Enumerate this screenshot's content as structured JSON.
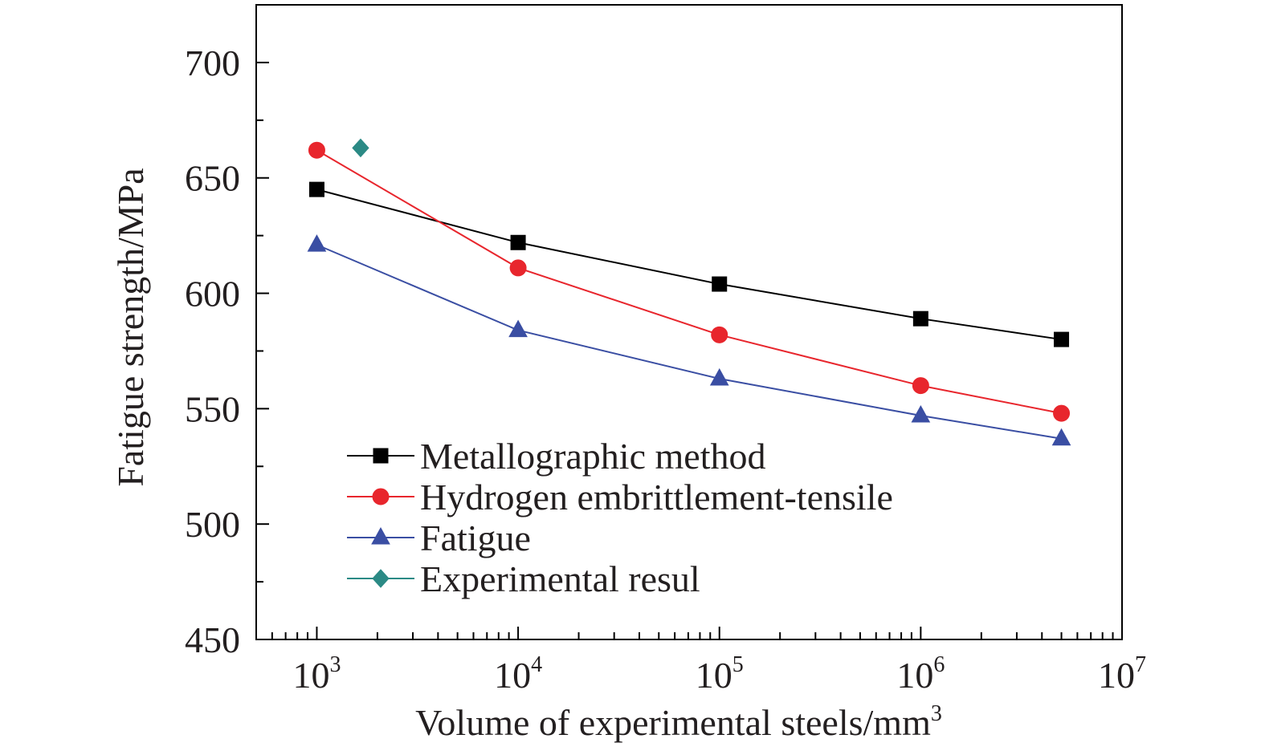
{
  "chart_data": {
    "type": "line",
    "xscale": "log",
    "xlim": [
      500,
      10000000
    ],
    "ylim": [
      450,
      725
    ],
    "xlabel": "Volume of experimental steels/mm",
    "xlabel_superscript": "3",
    "ylabel": "Fatigue strength/MPa",
    "x_ticks": [
      {
        "value": 1000,
        "base": "10",
        "exp": "3"
      },
      {
        "value": 10000,
        "base": "10",
        "exp": "4"
      },
      {
        "value": 100000,
        "base": "10",
        "exp": "5"
      },
      {
        "value": 1000000,
        "base": "10",
        "exp": "6"
      },
      {
        "value": 10000000,
        "base": "10",
        "exp": "7"
      }
    ],
    "y_ticks": [
      {
        "value": 450,
        "label": "450"
      },
      {
        "value": 500,
        "label": "500"
      },
      {
        "value": 550,
        "label": "550"
      },
      {
        "value": 600,
        "label": "600"
      },
      {
        "value": 650,
        "label": "650"
      },
      {
        "value": 700,
        "label": "700"
      }
    ],
    "grid": false,
    "legend_position": "bottom-left",
    "series": [
      {
        "name": "Metallographic method",
        "color": "#000000",
        "marker": "square",
        "x": [
          1000,
          10000,
          100000,
          1000000,
          5000000
        ],
        "y": [
          645,
          622,
          604,
          589,
          580
        ]
      },
      {
        "name": "Hydrogen embrittlement-tensile",
        "color": "#e8262d",
        "marker": "circle",
        "x": [
          1000,
          10000,
          100000,
          1000000,
          5000000
        ],
        "y": [
          662,
          611,
          582,
          560,
          548
        ]
      },
      {
        "name": "Fatigue",
        "color": "#3a4ea3",
        "marker": "triangle",
        "x": [
          1000,
          10000,
          100000,
          1000000,
          5000000
        ],
        "y": [
          621,
          584,
          563,
          547,
          537
        ]
      },
      {
        "name": "Experimental resul",
        "color": "#2b8a85",
        "marker": "diamond",
        "x": [
          1650
        ],
        "y": [
          663
        ]
      }
    ]
  }
}
